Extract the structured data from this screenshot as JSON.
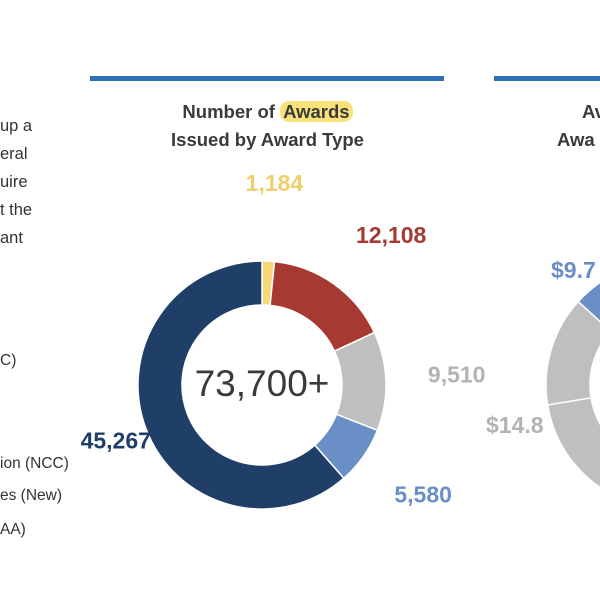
{
  "left_column": {
    "paragraph_fragments": [
      "up a",
      "eral",
      "uire",
      "t the",
      "ant"
    ],
    "legend_fragments": [
      "C)",
      "ion (NCC)",
      "es (New)",
      "AA)"
    ]
  },
  "right_chart_fragment": {
    "title_lines": [
      "Av",
      "Awa"
    ],
    "labels": [
      "$9.7",
      "$14.8"
    ],
    "colors": {
      "blue": "#6a8fc6",
      "gray": "#bfbfc1",
      "red": "#a63a33"
    }
  },
  "chart_data": {
    "type": "pie",
    "style": "donut",
    "title": "Number of Awards Issued by Award Type",
    "title_line1_prefix": "Number of",
    "title_highlight": "Awards",
    "title_line2": "Issued by Award Type",
    "center_label": "73,700+",
    "slices": [
      {
        "label": "1,184",
        "value": 1184,
        "color": "#f6d878"
      },
      {
        "label": "12,108",
        "value": 12108,
        "color": "#a63a33"
      },
      {
        "label": "9,510",
        "value": 9510,
        "color": "#bfbfc1"
      },
      {
        "label": "5,580",
        "value": 5580,
        "color": "#6a8fc6"
      },
      {
        "label": "45,267",
        "value": 45267,
        "color": "#1f3f69"
      }
    ],
    "legend": "none"
  }
}
